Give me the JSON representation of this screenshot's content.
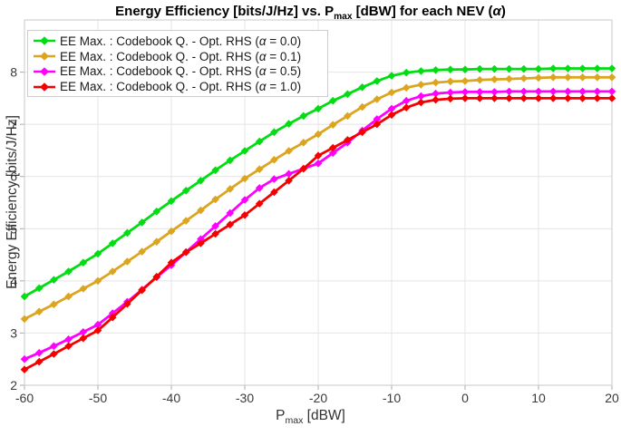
{
  "title": {
    "part1": "Energy Efficiency [bits/J/Hz] vs. P",
    "sub": "max",
    "part2": " [dBW] for each NEV (",
    "alpha": "α",
    "part3": ")"
  },
  "xlabel": {
    "part1": "P",
    "sub": "max",
    "part2": " [dBW]"
  },
  "ylabel": "Energy Efficiency [bits/J/Hz]",
  "legend": {
    "items": [
      {
        "pre": "EE Max. : Codebook Q. - Opt. RHS (",
        "alpha": "α",
        "post": " = 0.0)"
      },
      {
        "pre": "EE Max. : Codebook Q. - Opt. RHS (",
        "alpha": "α",
        "post": " = 0.1)"
      },
      {
        "pre": "EE Max. : Codebook Q. - Opt. RHS (",
        "alpha": "α",
        "post": " = 0.5)"
      },
      {
        "pre": "EE Max. : Codebook Q. - Opt. RHS (",
        "alpha": "α",
        "post": " = 1.0)"
      }
    ]
  },
  "chart_data": {
    "type": "line",
    "title": "Energy Efficiency [bits/J/Hz] vs. P_max [dBW] for each NEV (α)",
    "xlabel": "P_max [dBW]",
    "ylabel": "Energy Efficiency [bits/J/Hz]",
    "xlim": [
      -60,
      20
    ],
    "ylim": [
      2,
      9
    ],
    "xticks": [
      -60,
      -50,
      -40,
      -30,
      -20,
      -10,
      0,
      10,
      20
    ],
    "yticks": [
      2,
      3,
      4,
      5,
      6,
      7,
      8
    ],
    "grid": true,
    "legend_position": "top-left",
    "marker": "diamond",
    "x": [
      -60,
      -58,
      -56,
      -54,
      -52,
      -50,
      -48,
      -46,
      -44,
      -42,
      -40,
      -38,
      -36,
      -34,
      -32,
      -30,
      -28,
      -26,
      -24,
      -22,
      -20,
      -18,
      -16,
      -14,
      -12,
      -10,
      -8,
      -6,
      -4,
      -2,
      0,
      2,
      4,
      6,
      8,
      10,
      12,
      14,
      16,
      18,
      20
    ],
    "series": [
      {
        "name": "EE Max. : Codebook Q. - Opt. RHS (α = 0.0)",
        "color": "#00dd12",
        "values": [
          3.7,
          3.86,
          4.02,
          4.18,
          4.35,
          4.52,
          4.72,
          4.92,
          5.12,
          5.33,
          5.53,
          5.73,
          5.92,
          6.12,
          6.31,
          6.49,
          6.67,
          6.85,
          7.01,
          7.16,
          7.3,
          7.45,
          7.58,
          7.71,
          7.83,
          7.93,
          7.99,
          8.02,
          8.04,
          8.05,
          8.05,
          8.06,
          8.06,
          8.06,
          8.06,
          8.06,
          8.07,
          8.07,
          8.07,
          8.07,
          8.07
        ]
      },
      {
        "name": "EE Max. : Codebook Q. - Opt. RHS (α = 0.1)",
        "color": "#dba520",
        "values": [
          3.27,
          3.41,
          3.55,
          3.7,
          3.85,
          4.0,
          4.18,
          4.37,
          4.56,
          4.75,
          4.95,
          5.15,
          5.35,
          5.56,
          5.76,
          5.96,
          6.14,
          6.32,
          6.49,
          6.65,
          6.81,
          6.99,
          7.16,
          7.33,
          7.48,
          7.61,
          7.7,
          7.76,
          7.8,
          7.82,
          7.83,
          7.85,
          7.86,
          7.87,
          7.88,
          7.89,
          7.9,
          7.9,
          7.9,
          7.9,
          7.9
        ]
      },
      {
        "name": "EE Max. : Codebook Q. - Opt. RHS (α = 0.5)",
        "color": "#ff00ff",
        "values": [
          2.5,
          2.62,
          2.75,
          2.88,
          3.02,
          3.16,
          3.38,
          3.6,
          3.83,
          4.07,
          4.3,
          4.55,
          4.8,
          5.05,
          5.3,
          5.55,
          5.78,
          5.95,
          6.05,
          6.15,
          6.25,
          6.45,
          6.65,
          6.88,
          7.1,
          7.3,
          7.45,
          7.54,
          7.59,
          7.61,
          7.62,
          7.62,
          7.62,
          7.63,
          7.63,
          7.63,
          7.63,
          7.63,
          7.63,
          7.63,
          7.63
        ]
      },
      {
        "name": "EE Max. : Codebook Q. - Opt. RHS (α = 1.0)",
        "color": "#f50000",
        "values": [
          2.3,
          2.45,
          2.6,
          2.75,
          2.9,
          3.05,
          3.3,
          3.56,
          3.82,
          4.08,
          4.35,
          4.55,
          4.72,
          4.9,
          5.08,
          5.26,
          5.48,
          5.7,
          5.92,
          6.15,
          6.4,
          6.55,
          6.7,
          6.85,
          7.0,
          7.18,
          7.32,
          7.42,
          7.47,
          7.49,
          7.5,
          7.5,
          7.5,
          7.5,
          7.5,
          7.5,
          7.5,
          7.5,
          7.5,
          7.5,
          7.5
        ]
      }
    ]
  }
}
